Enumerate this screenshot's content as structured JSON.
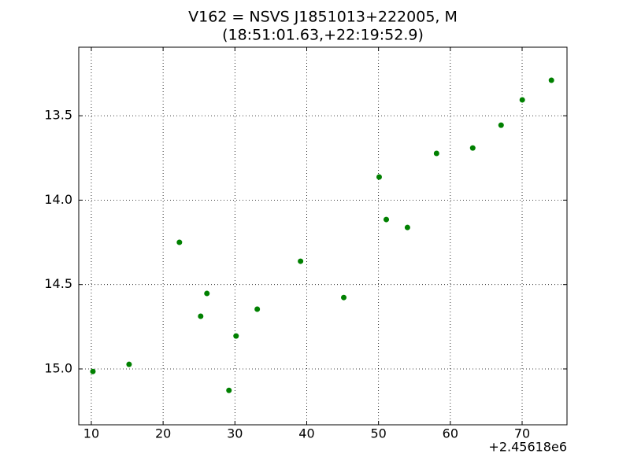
{
  "chart_data": {
    "type": "scatter",
    "title": "V162 = NSVS J1851013+222005, M",
    "subtitle": "(18:51:01.63,+22:19:52.9)",
    "x_offset_label": "+2.45618e6",
    "color": "#008000",
    "x": [
      10.22,
      15.26,
      22.27,
      25.23,
      26.1,
      29.17,
      30.16,
      33.11,
      39.14,
      45.16,
      50.09,
      51.08,
      54.03,
      58.08,
      63.12,
      67.07,
      70.02,
      74.08
    ],
    "values": [
      15.015,
      14.973,
      14.25,
      14.688,
      14.553,
      15.127,
      14.805,
      14.646,
      14.362,
      14.577,
      13.863,
      14.115,
      14.162,
      13.723,
      13.691,
      13.556,
      13.406,
      13.29
    ],
    "xlim": [
      8.25,
      76.25
    ],
    "ylim": [
      15.331,
      13.094
    ],
    "xticks": [
      10,
      20,
      30,
      40,
      50,
      60,
      70
    ],
    "yticks": [
      13.5,
      {
        "value": 14,
        "label": "14.0"
      },
      14.5,
      {
        "value": 15,
        "label": "15.0"
      }
    ],
    "grid": true
  }
}
